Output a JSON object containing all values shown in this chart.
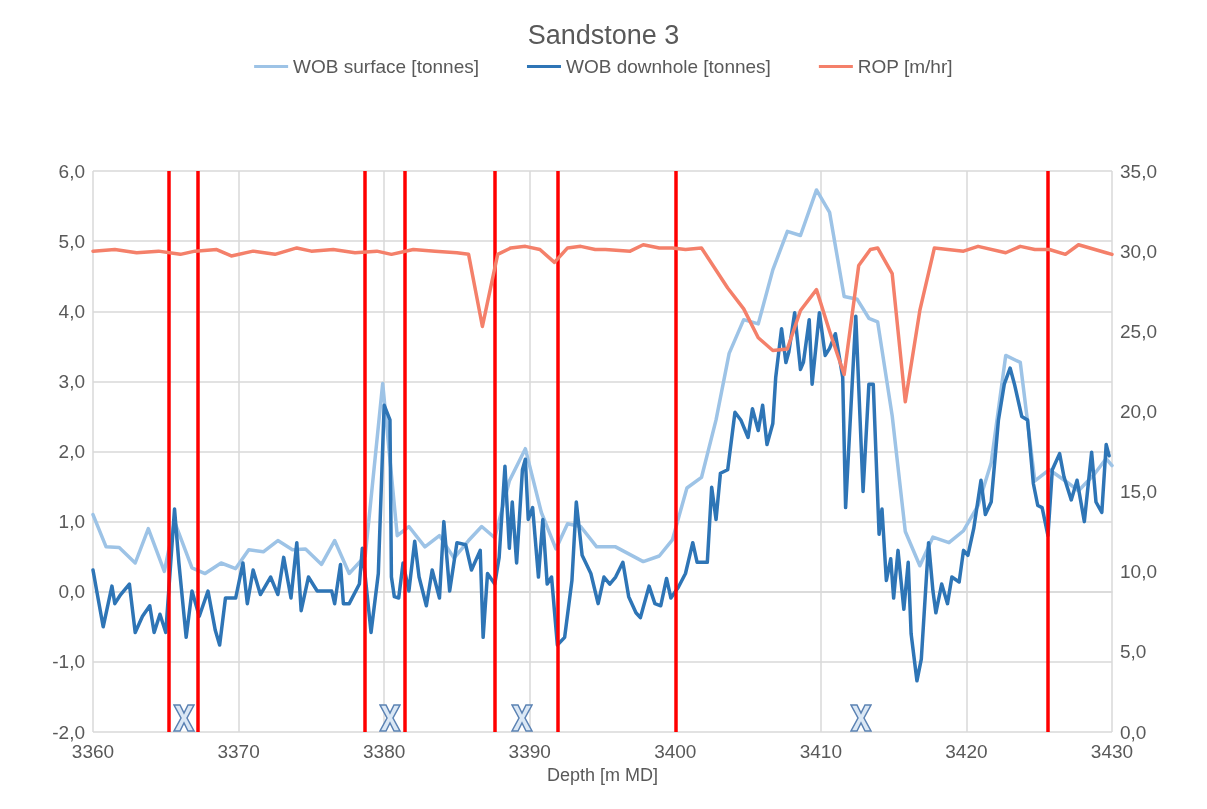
{
  "chart_data": {
    "type": "line",
    "title": "Sandstone 3",
    "xlabel": "Depth [m MD]",
    "xlim": [
      3360,
      3430
    ],
    "xticks": [
      3360,
      3370,
      3380,
      3390,
      3400,
      3410,
      3420,
      3430
    ],
    "ylim": [
      -2,
      6
    ],
    "yticks": [
      {
        "value": -2,
        "label": "-2,0"
      },
      {
        "value": -1,
        "label": "-1,0"
      },
      {
        "value": 0,
        "label": "0,0"
      },
      {
        "value": 1,
        "label": "1,0"
      },
      {
        "value": 2,
        "label": "2,0"
      },
      {
        "value": 3,
        "label": "3,0"
      },
      {
        "value": 4,
        "label": "4,0"
      },
      {
        "value": 5,
        "label": "5,0"
      },
      {
        "value": 6,
        "label": "6,0"
      }
    ],
    "y2lim": [
      0,
      35
    ],
    "y2ticks": [
      {
        "value": 0,
        "label": "0,0"
      },
      {
        "value": 5,
        "label": "5,0"
      },
      {
        "value": 10,
        "label": "10,0"
      },
      {
        "value": 15,
        "label": "15,0"
      },
      {
        "value": 20,
        "label": "20,0"
      },
      {
        "value": 25,
        "label": "25,0"
      },
      {
        "value": 30,
        "label": "30,0"
      },
      {
        "value": 35,
        "label": "35,0"
      }
    ],
    "grid": true,
    "legend": "top",
    "marker": "none",
    "line_style": "solid",
    "series": [
      {
        "name": "WOB surface [tonnes]",
        "color": "#9dc3e6",
        "x": [
          3360,
          3360.9,
          3361.8,
          3362.9,
          3363.8,
          3364.9,
          3365.6,
          3366.8,
          3367.7,
          3368.8,
          3369.8,
          3370.7,
          3371.7,
          3372.7,
          3373.7,
          3374.6,
          3375.7,
          3376.6,
          3377.6,
          3378.7,
          3379.9,
          3380.9,
          3381.7,
          3382.8,
          3383.8,
          3384.8,
          3385.8,
          3386.7,
          3387.6,
          3388.6,
          3389.7,
          3390.8,
          3391.8,
          3392.6,
          3393.5,
          3394.6,
          3395.9,
          3397.8,
          3398.9,
          3399.8,
          3400.8,
          3401.8,
          3402.8,
          3403.7,
          3404.7,
          3405.7,
          3406.7,
          3407.7,
          3408.6,
          3409.7,
          3410.6,
          3411.6,
          3412.5,
          3413.3,
          3413.9,
          3414.9,
          3415.8,
          3416.8,
          3417.7,
          3418.8,
          3419.8,
          3420.8,
          3421.7,
          3422.7,
          3423.7,
          3424.7,
          3425.7,
          3426.8,
          3427.7,
          3428.8,
          3429.6,
          3430
        ],
        "values": [
          1.1,
          0.64,
          0.63,
          0.41,
          0.9,
          0.29,
          1.0,
          0.34,
          0.26,
          0.41,
          0.33,
          0.6,
          0.57,
          0.73,
          0.6,
          0.61,
          0.39,
          0.73,
          0.26,
          0.51,
          2.97,
          0.8,
          0.93,
          0.64,
          0.8,
          0.48,
          0.73,
          0.93,
          0.77,
          1.58,
          2.04,
          1.13,
          0.61,
          0.97,
          0.93,
          0.64,
          0.64,
          0.43,
          0.51,
          0.74,
          1.48,
          1.63,
          2.45,
          3.4,
          3.88,
          3.82,
          4.59,
          5.14,
          5.08,
          5.73,
          5.41,
          4.21,
          4.17,
          3.9,
          3.85,
          2.51,
          0.86,
          0.37,
          0.78,
          0.7,
          0.87,
          1.23,
          1.84,
          3.37,
          3.27,
          1.58,
          1.74,
          1.58,
          1.44,
          1.68,
          1.9,
          1.8
        ]
      },
      {
        "name": "WOB downhole [tonnes]",
        "color": "#2e75b6",
        "x": [
          3360,
          3360.3,
          3360.7,
          3361.3,
          3361.5,
          3361.9,
          3362.5,
          3362.9,
          3363.4,
          3363.9,
          3364.2,
          3364.6,
          3365,
          3365.6,
          3365.9,
          3366.4,
          3366.8,
          3367.3,
          3367.9,
          3368.4,
          3368.7,
          3369.1,
          3369.8,
          3370.3,
          3370.6,
          3371,
          3371.5,
          3372.2,
          3372.7,
          3373.1,
          3373.6,
          3374,
          3374.3,
          3374.8,
          3375.4,
          3376.4,
          3376.6,
          3377,
          3377.2,
          3377.6,
          3378.3,
          3378.5,
          3379.1,
          3379.6,
          3380,
          3380.4,
          3380.5,
          3380.7,
          3381,
          3381.3,
          3381.7,
          3382.1,
          3382.4,
          3382.9,
          3383.3,
          3383.8,
          3384.1,
          3384.5,
          3385,
          3385.6,
          3386,
          3386.6,
          3386.8,
          3387.1,
          3387.6,
          3387.9,
          3388.3,
          3388.6,
          3388.8,
          3389.1,
          3389.5,
          3389.7,
          3389.9,
          3390.2,
          3390.6,
          3390.9,
          3391.2,
          3391.5,
          3391.9,
          3392.4,
          3392.9,
          3393.2,
          3393.6,
          3394.2,
          3394.7,
          3395.1,
          3395.5,
          3395.9,
          3396.4,
          3396.8,
          3397.3,
          3397.6,
          3398.2,
          3398.6,
          3399,
          3399.4,
          3399.7,
          3400.2,
          3400.7,
          3401.2,
          3401.5,
          3402.2,
          3402.5,
          3402.8,
          3403.1,
          3403.6,
          3404.1,
          3404.5,
          3405,
          3405.3,
          3405.7,
          3406,
          3406.3,
          3406.7,
          3406.9,
          3407.3,
          3407.6,
          3407.8,
          3408.2,
          3408.6,
          3408.8,
          3409.2,
          3409.4,
          3409.9,
          3410.3,
          3410.6,
          3411,
          3411.5,
          3411.7,
          3412.4,
          3412.9,
          3413.3,
          3413.6,
          3414,
          3414.2,
          3414.5,
          3414.8,
          3415,
          3415.3,
          3415.7,
          3416,
          3416.2,
          3416.6,
          3416.9,
          3417.4,
          3417.7,
          3417.9,
          3418.3,
          3418.7,
          3419,
          3419.5,
          3419.8,
          3420.1,
          3420.5,
          3421,
          3421.3,
          3421.7,
          3422.2,
          3422.6,
          3423,
          3423.3,
          3423.8,
          3424.2,
          3424.6,
          3424.9,
          3425.2,
          3425.6,
          3425.9,
          3426.4,
          3426.7,
          3427.2,
          3427.6,
          3428.1,
          3428.6,
          3428.9,
          3429.3,
          3429.6,
          3429.8
        ],
        "values": [
          0.31,
          -0.04,
          -0.5,
          0.08,
          -0.17,
          -0.04,
          0.11,
          -0.58,
          -0.35,
          -0.2,
          -0.58,
          -0.32,
          -0.58,
          1.18,
          0.41,
          -0.65,
          0.01,
          -0.35,
          0.01,
          -0.55,
          -0.76,
          -0.09,
          -0.09,
          0.41,
          -0.17,
          0.31,
          -0.04,
          0.21,
          -0.04,
          0.49,
          -0.09,
          0.7,
          -0.27,
          0.21,
          0.01,
          0.01,
          -0.17,
          0.39,
          -0.17,
          -0.17,
          0.11,
          0.62,
          -0.58,
          0.26,
          2.66,
          2.45,
          0.21,
          -0.07,
          -0.09,
          0.41,
          0.01,
          0.72,
          0.21,
          -0.2,
          0.31,
          -0.09,
          1.0,
          0.01,
          0.7,
          0.67,
          0.31,
          0.59,
          -0.65,
          0.26,
          0.11,
          0.49,
          1.79,
          0.62,
          1.28,
          0.41,
          1.74,
          1.89,
          1.03,
          1.2,
          0.21,
          1.03,
          0.11,
          0.21,
          -0.76,
          -0.65,
          0.16,
          1.28,
          0.52,
          0.26,
          -0.17,
          0.21,
          0.11,
          0.21,
          0.42,
          -0.07,
          -0.3,
          -0.37,
          0.08,
          -0.17,
          -0.2,
          0.19,
          -0.09,
          0.06,
          0.26,
          0.7,
          0.42,
          0.42,
          1.49,
          1.03,
          1.69,
          1.74,
          2.56,
          2.45,
          2.2,
          2.61,
          2.3,
          2.66,
          2.1,
          2.4,
          3.06,
          3.75,
          3.27,
          3.42,
          3.98,
          3.17,
          3.27,
          3.88,
          2.96,
          3.98,
          3.37,
          3.47,
          3.68,
          3.06,
          1.2,
          3.93,
          1.43,
          2.96,
          2.96,
          0.82,
          1.18,
          0.16,
          0.47,
          -0.09,
          0.59,
          -0.25,
          0.42,
          -0.6,
          -1.27,
          -0.96,
          0.7,
          0.01,
          -0.3,
          0.11,
          -0.17,
          0.21,
          0.14,
          0.59,
          0.52,
          0.9,
          1.59,
          1.1,
          1.28,
          2.45,
          2.96,
          3.19,
          2.96,
          2.5,
          2.45,
          1.54,
          1.23,
          1.2,
          0.8,
          1.74,
          1.97,
          1.64,
          1.31,
          1.59,
          1.0,
          1.99,
          1.28,
          1.13,
          2.1,
          1.94
        ]
      },
      {
        "name": "ROP [m/hr]",
        "color": "#f4806a",
        "axis": "y2",
        "x": [
          3360,
          3361.5,
          3363,
          3364.5,
          3366,
          3367,
          3368.5,
          3369.5,
          3371,
          3372.5,
          3374,
          3375,
          3376.5,
          3378,
          3379.5,
          3380.5,
          3382,
          3383.5,
          3385,
          3385.8,
          3386.75,
          3387.8,
          3388.7,
          3389.7,
          3390.7,
          3391.7,
          3392.6,
          3393.5,
          3394.5,
          3395.2,
          3396.9,
          3397.8,
          3398.9,
          3399.8,
          3400.7,
          3401.8,
          3403.6,
          3404.7,
          3405.7,
          3406.7,
          3407.7,
          3408.6,
          3409.7,
          3410.6,
          3411.6,
          3412.6,
          3413.4,
          3413.9,
          3414.9,
          3415.8,
          3416.8,
          3417.8,
          3419.8,
          3420.8,
          3422.7,
          3423.7,
          3424.7,
          3425.7,
          3426.8,
          3427.7,
          3429.6,
          3430
        ],
        "values": [
          30.0,
          30.1,
          29.9,
          30.0,
          29.8,
          30.0,
          30.1,
          29.7,
          30.0,
          29.8,
          30.2,
          30.0,
          30.1,
          29.9,
          30.0,
          29.8,
          30.1,
          30.0,
          29.9,
          29.8,
          25.3,
          29.8,
          30.2,
          30.3,
          30.1,
          29.3,
          30.2,
          30.3,
          30.1,
          30.1,
          30.0,
          30.4,
          30.2,
          30.2,
          30.1,
          30.2,
          27.7,
          26.4,
          24.6,
          23.8,
          23.9,
          26.3,
          27.6,
          25.0,
          22.3,
          29.1,
          30.1,
          30.2,
          28.6,
          20.6,
          26.3,
          30.2,
          30.0,
          30.3,
          29.9,
          30.3,
          30.1,
          30.1,
          29.8,
          30.4,
          29.9,
          29.8
        ]
      }
    ],
    "ref_lines": [
      {
        "axis": "x",
        "value": 3365.2,
        "color": "#ff0000"
      },
      {
        "axis": "x",
        "value": 3367.2,
        "color": "#ff0000"
      },
      {
        "axis": "x",
        "value": 3378.7,
        "color": "#ff0000"
      },
      {
        "axis": "x",
        "value": 3381.4,
        "color": "#ff0000"
      },
      {
        "axis": "x",
        "value": 3387.6,
        "color": "#ff0000"
      },
      {
        "axis": "x",
        "value": 3391.9,
        "color": "#ff0000"
      },
      {
        "axis": "x",
        "value": 3400.0,
        "color": "#ff0000"
      },
      {
        "axis": "x",
        "value": 3425.6,
        "color": "#ff0000"
      }
    ]
  }
}
